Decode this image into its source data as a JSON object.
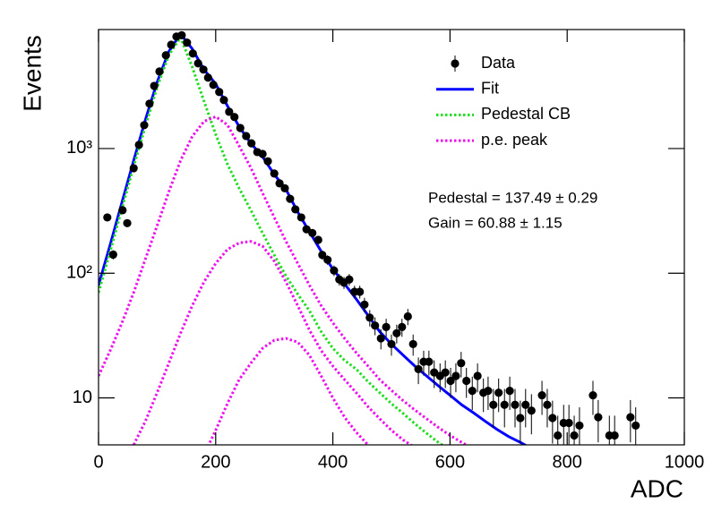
{
  "chart_data": {
    "type": "errorbar",
    "xlabel": "ADC",
    "ylabel": "Events",
    "xlim": [
      0,
      1000
    ],
    "xticks": [
      0,
      200,
      400,
      600,
      800,
      1000
    ],
    "ylim": [
      4.2,
      9000
    ],
    "yticks": [
      10,
      {
        "value": 100,
        "label": "10²"
      },
      {
        "value": 1000,
        "label": "10³"
      }
    ],
    "ylog": true,
    "annotations": [
      "Pedestal = 137.49 ± 0.29",
      "Gain = 60.88 ± 1.15"
    ],
    "series": [
      {
        "name": "Data",
        "type": "points",
        "color": "#000000",
        "x": [
          15,
          25,
          41,
          49,
          60,
          69,
          78,
          87,
          95,
          104,
          115,
          124,
          133,
          142,
          151,
          161,
          170,
          179,
          187,
          196,
          206,
          214,
          223,
          232,
          242,
          252,
          261,
          271,
          280,
          289,
          300,
          309,
          318,
          327,
          336,
          346,
          355,
          365,
          375,
          382,
          391,
          402,
          411,
          419,
          428,
          437,
          446,
          454,
          463,
          472,
          482,
          491,
          500,
          509,
          518,
          528,
          537,
          546,
          555,
          564,
          573,
          583,
          592,
          601,
          610,
          619,
          628,
          638,
          647,
          657,
          665,
          674,
          683,
          693,
          702,
          711,
          720,
          729,
          739,
          757,
          766,
          775,
          784,
          794,
          803,
          812,
          821,
          844,
          853,
          872,
          881,
          908,
          917
        ],
        "values": [
          280,
          141,
          320,
          252,
          695,
          1070,
          1540,
          2290,
          3180,
          4150,
          5600,
          6800,
          7900,
          8100,
          7070,
          5780,
          4820,
          4300,
          3700,
          3240,
          2840,
          2450,
          1970,
          1790,
          1460,
          1260,
          1100,
          936,
          905,
          790,
          630,
          525,
          480,
          395,
          325,
          280,
          225,
          210,
          185,
          140,
          128,
          105,
          89,
          84,
          89,
          71,
          71,
          56,
          44,
          38,
          30,
          37,
          27,
          33,
          37,
          45,
          27,
          17,
          19.5,
          19.5,
          16,
          15,
          16,
          13.7,
          15,
          19,
          13.7,
          11.4,
          15,
          11,
          11.4,
          8.8,
          11,
          8.8,
          11.4,
          8.8,
          6.9,
          8.8,
          7.9,
          10.5,
          8.8,
          6.9,
          5,
          6.3,
          6.3,
          5,
          6,
          10.5,
          7,
          5,
          5,
          7,
          6
        ],
        "errors": [
          17,
          12,
          18,
          16,
          26,
          33,
          39,
          48,
          56,
          64,
          75,
          82,
          89,
          90,
          84,
          76,
          69,
          66,
          61,
          57,
          53,
          49,
          44,
          42,
          38,
          35,
          33,
          31,
          30,
          28,
          25,
          23,
          22,
          20,
          18,
          17,
          15,
          14.5,
          13.6,
          11.8,
          11.3,
          10.2,
          9.4,
          9.2,
          9.4,
          8.4,
          8.4,
          7.5,
          6.6,
          6.2,
          5.5,
          6.1,
          5.2,
          5.7,
          6.1,
          6.7,
          5.2,
          4.1,
          4.4,
          4.4,
          4,
          3.9,
          4,
          3.7,
          3.9,
          4.4,
          3.7,
          3.4,
          3.9,
          3.3,
          3.4,
          3,
          3.3,
          3,
          3.4,
          3,
          2.6,
          3,
          2.8,
          3.2,
          3,
          2.6,
          2.2,
          2.5,
          2.5,
          2.2,
          2.4,
          3.2,
          2.6,
          2.2,
          2.2,
          2.6,
          2.4
        ]
      },
      {
        "name": "Fit",
        "type": "line",
        "color": "#0000ff",
        "style": "solid",
        "x": [
          0,
          20,
          40,
          60,
          80,
          100,
          120,
          140,
          160,
          180,
          200,
          220,
          240,
          260,
          280,
          300,
          320,
          340,
          360,
          380,
          400,
          420,
          440,
          460,
          480,
          500,
          520,
          540,
          560,
          580,
          600,
          620,
          640,
          660,
          680,
          700,
          720,
          740
        ],
        "values": [
          80,
          170,
          370,
          800,
          1700,
          3400,
          6000,
          8300,
          6300,
          4300,
          3300,
          2200,
          1500,
          1100,
          860,
          620,
          470,
          310,
          215,
          150,
          108,
          82,
          62,
          46,
          34,
          27,
          22,
          18,
          15,
          12.5,
          10.5,
          8.8,
          7.6,
          6.5,
          5.6,
          4.9,
          4.4,
          3.9
        ]
      },
      {
        "name": "Pedestal CB",
        "type": "line",
        "color": "#22dd22",
        "style": "dotted",
        "x": [
          0,
          20,
          40,
          60,
          80,
          100,
          120,
          140,
          160,
          180,
          200,
          220,
          240,
          260,
          280,
          300,
          320,
          340,
          360,
          380,
          400,
          420,
          440,
          460,
          480,
          500,
          520,
          540,
          560,
          580,
          600
        ],
        "values": [
          70,
          150,
          330,
          720,
          1500,
          3100,
          5600,
          7800,
          4500,
          2400,
          1300,
          750,
          480,
          320,
          210,
          140,
          95,
          68,
          50,
          34,
          25,
          20,
          17,
          13.5,
          11,
          9,
          7.5,
          6.2,
          5.2,
          4.4,
          3.8
        ]
      },
      {
        "name": "p.e. peak",
        "type": "line",
        "color": "#ee11ee",
        "style": "dotted",
        "components": [
          {
            "x": [
              0,
              20,
              40,
              60,
              80,
              100,
              120,
              140,
              160,
              180,
              200,
              220,
              240,
              260,
              280,
              300,
              320,
              340,
              360,
              380,
              400,
              420,
              440,
              460,
              480,
              500,
              520,
              540,
              560,
              580,
              600,
              620,
              640
            ],
            "values": [
              15,
              24,
              40,
              70,
              130,
              240,
              450,
              800,
              1250,
              1650,
              1800,
              1550,
              1050,
              700,
              440,
              280,
              180,
              120,
              80,
              55,
              40,
              30,
              23,
              18,
              14,
              11.5,
              9.5,
              8,
              6.8,
              5.8,
              5,
              4.4,
              3.9
            ]
          },
          {
            "x": [
              60,
              80,
              100,
              120,
              140,
              160,
              180,
              200,
              220,
              240,
              260,
              280,
              300,
              320,
              340,
              360,
              380,
              400,
              420,
              440,
              460,
              480,
              500,
              520,
              540
            ],
            "values": [
              4.2,
              6.5,
              11,
              19,
              33,
              55,
              85,
              120,
              155,
              175,
              180,
              165,
              125,
              85,
              55,
              35,
              24,
              18,
              14,
              11,
              8.5,
              6.8,
              5.5,
              4.6,
              4.0
            ]
          },
          {
            "x": [
              180,
              200,
              220,
              240,
              260,
              280,
              300,
              320,
              340,
              360,
              380,
              400,
              420,
              440,
              460
            ],
            "values": [
              3.5,
              5.5,
              9,
              14,
              19,
              25,
              29,
              30,
              28,
              22,
              15,
              10,
              7,
              5.3,
              4.2
            ]
          }
        ]
      }
    ]
  }
}
